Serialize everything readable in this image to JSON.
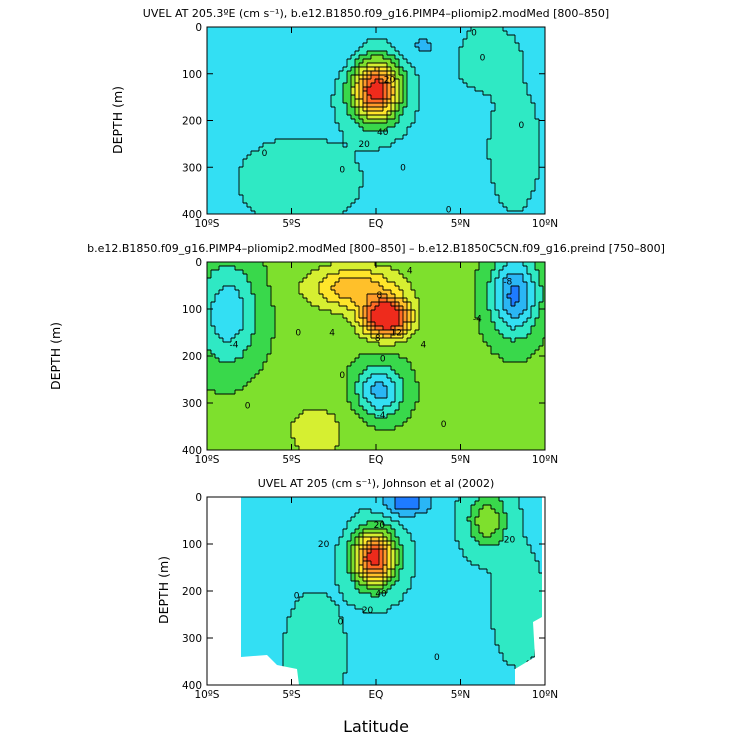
{
  "colors": {
    "background": "#ffffff",
    "levels": [
      "#0a3fe0",
      "#1e7bff",
      "#2ab6f5",
      "#33dff3",
      "#2fe9c4",
      "#39d84b",
      "#7ee02d",
      "#d6ef31",
      "#ffe52a",
      "#ffc02a",
      "#ff9a2a",
      "#ff6a25",
      "#ee2b1c"
    ],
    "contour_line": "#000000",
    "no_data": "#ffffff"
  },
  "chart_data": [
    {
      "type": "heatmap",
      "panel": "top",
      "title": "UVEL AT 205.3ºE (cm s⁻¹), b.e12.B1850.f09_g16.PIMP4–pliomip2.modMed [800–850]",
      "xlabel": "",
      "ylabel": "DEPTH (m)",
      "xlim": [
        -10,
        10
      ],
      "ylim": [
        400,
        0
      ],
      "x_ticks": [
        -10,
        -5,
        0,
        5,
        10
      ],
      "x_tick_labels": [
        "10ºS",
        "5ºS",
        "EQ",
        "5ºN",
        "10ºN"
      ],
      "y_ticks": [
        0,
        100,
        200,
        300,
        400
      ],
      "y_tick_labels": [
        "0",
        "100",
        "200",
        "300",
        "400"
      ],
      "contour_interval": 10,
      "level_base": 0,
      "grid": false,
      "contour_labels": [
        {
          "text": "0",
          "x": 5.8,
          "y": 12
        },
        {
          "text": "0",
          "x": 8.6,
          "y": 210
        },
        {
          "text": "0",
          "x": -6.6,
          "y": 270
        },
        {
          "text": "0",
          "x": -2.0,
          "y": 305
        },
        {
          "text": "0",
          "x": 4.3,
          "y": 390
        },
        {
          "text": "0",
          "x": 1.6,
          "y": 300
        },
        {
          "text": "20",
          "x": 0.8,
          "y": 112
        },
        {
          "text": "40",
          "x": 0.4,
          "y": 225
        },
        {
          "text": "20",
          "x": -0.7,
          "y": 250
        },
        {
          "text": "0",
          "x": 6.3,
          "y": 65
        }
      ]
    },
    {
      "type": "heatmap",
      "panel": "middle",
      "title": "b.e12.B1850.f09_g16.PIMP4–pliomip2.modMed [800–850] – b.e12.B1850C5CN.f09_g16.preind [750–800]",
      "xlabel": "",
      "ylabel": "DEPTH (m)",
      "xlim": [
        -10,
        10
      ],
      "ylim": [
        400,
        0
      ],
      "x_ticks": [
        -10,
        -5,
        0,
        5,
        10
      ],
      "x_tick_labels": [
        "10ºS",
        "5ºS",
        "EQ",
        "5ºN",
        "10ºN"
      ],
      "y_ticks": [
        0,
        100,
        200,
        300,
        400
      ],
      "y_tick_labels": [
        "0",
        "100",
        "200",
        "300",
        "400"
      ],
      "contour_interval": 2,
      "level_base": -6,
      "grid": false,
      "contour_labels": [
        {
          "text": "4",
          "x": 2.0,
          "y": 18
        },
        {
          "text": "8",
          "x": 0.2,
          "y": 70
        },
        {
          "text": "8",
          "x": 0.1,
          "y": 162
        },
        {
          "text": "4",
          "x": -2.6,
          "y": 150
        },
        {
          "text": "4",
          "x": 2.8,
          "y": 175
        },
        {
          "text": "12",
          "x": 1.2,
          "y": 150
        },
        {
          "text": "0",
          "x": -4.6,
          "y": 150
        },
        {
          "text": "0",
          "x": -2.0,
          "y": 240
        },
        {
          "text": "0",
          "x": 0.4,
          "y": 205
        },
        {
          "text": "-4",
          "x": 0.3,
          "y": 325
        },
        {
          "text": "0",
          "x": -7.6,
          "y": 305
        },
        {
          "text": "0",
          "x": 4.0,
          "y": 345
        },
        {
          "text": "-4",
          "x": -8.4,
          "y": 175
        },
        {
          "text": "-4",
          "x": 6.0,
          "y": 120
        },
        {
          "text": "-8",
          "x": 7.8,
          "y": 42
        }
      ]
    },
    {
      "type": "heatmap",
      "panel": "bottom",
      "title": "UVEL AT 205 (cm s⁻¹), Johnson et al (2002)",
      "xlabel": "Latitude",
      "ylabel": "DEPTH (m)",
      "xlim": [
        -10,
        10
      ],
      "ylim": [
        400,
        0
      ],
      "x_ticks": [
        -10,
        -5,
        0,
        5,
        10
      ],
      "x_tick_labels": [
        "10ºS",
        "5ºS",
        "EQ",
        "5ºN",
        "10ºN"
      ],
      "y_ticks": [
        0,
        100,
        200,
        300,
        400
      ],
      "y_tick_labels": [
        "0",
        "100",
        "200",
        "300",
        "400"
      ],
      "contour_interval": 10,
      "level_base": 0,
      "grid": false,
      "contour_labels": [
        {
          "text": "20",
          "x": 7.9,
          "y": 90
        },
        {
          "text": "20",
          "x": -3.1,
          "y": 100
        },
        {
          "text": "0",
          "x": -4.7,
          "y": 210
        },
        {
          "text": "0",
          "x": -2.1,
          "y": 265
        },
        {
          "text": "20",
          "x": 0.2,
          "y": 60
        },
        {
          "text": "40",
          "x": 0.3,
          "y": 205
        },
        {
          "text": "20",
          "x": -0.5,
          "y": 240
        },
        {
          "text": "0",
          "x": 3.6,
          "y": 340
        }
      ]
    }
  ]
}
